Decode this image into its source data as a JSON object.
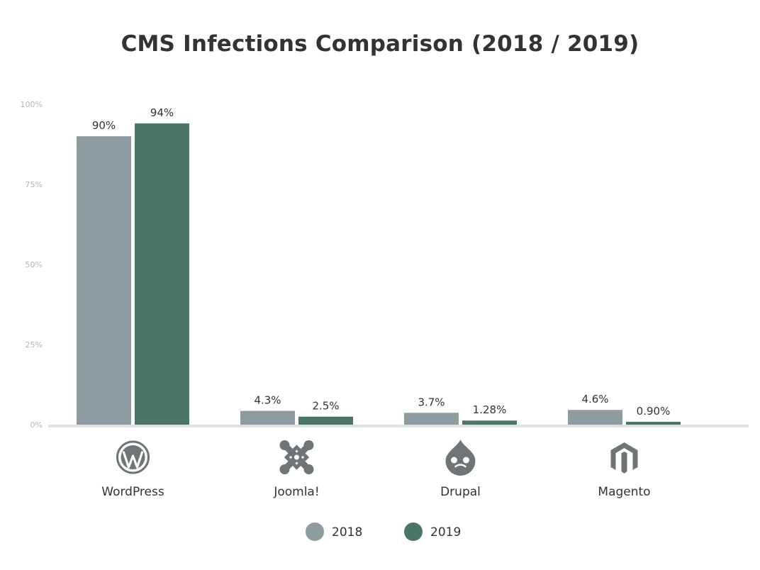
{
  "chart_data": {
    "type": "bar",
    "title": "CMS Infections Comparison (2018 / 2019)",
    "categories": [
      "WordPress",
      "Joomla!",
      "Drupal",
      "Magento"
    ],
    "category_icons": [
      "wordpress-icon",
      "joomla-icon",
      "drupal-icon",
      "magento-icon"
    ],
    "series": [
      {
        "name": "2018",
        "color": "#8f9c9f",
        "values": [
          90,
          4.3,
          3.7,
          4.6
        ],
        "labels": [
          "90%",
          "4.3%",
          "3.7%",
          "4.6%"
        ]
      },
      {
        "name": "2019",
        "color": "#4b7568",
        "values": [
          94,
          2.5,
          1.28,
          0.9
        ],
        "labels": [
          "94%",
          "2.5%",
          "1.28%",
          "0.90%"
        ]
      }
    ],
    "y_ticks": [
      0,
      25,
      50,
      75,
      100
    ],
    "y_tick_labels": [
      "0%",
      "25%",
      "50%",
      "75%",
      "100%"
    ],
    "ylim": [
      0,
      100
    ],
    "axis_color": "#e0e0e0",
    "icon_color": "#6f7477",
    "grid": false,
    "legend_position": "bottom-center"
  }
}
